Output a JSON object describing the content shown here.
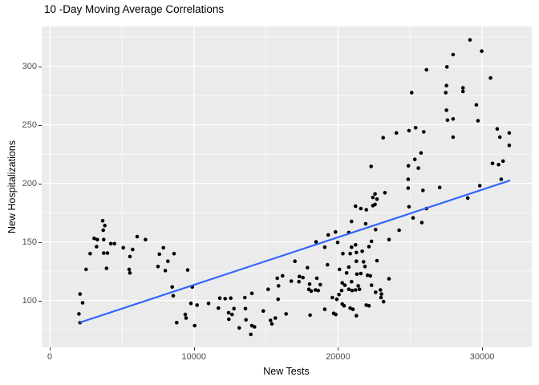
{
  "colors": {
    "panel_bg": "#EBEBEB",
    "grid_major": "#FFFFFF",
    "grid_minor": "#FFFFFF",
    "point": "#000000",
    "trend_line": "#3366FF",
    "tick_text": "#4D4D4D",
    "title_text": "#000000"
  },
  "chart_data": {
    "type": "scatter",
    "title": "10 -Day Moving Average Correlations",
    "xlabel": "New Tests",
    "ylabel": "New Hospitalizations",
    "xlim": [
      -560,
      33450
    ],
    "ylim": [
      60,
      334
    ],
    "grid": "major+minor",
    "legend_position": "none",
    "x_ticks": [
      0,
      10000,
      20000,
      30000
    ],
    "x_tick_labels": [
      "0",
      "10000",
      "20000",
      "30000"
    ],
    "x_minor_ticks": [
      5000,
      15000,
      25000
    ],
    "y_ticks": [
      100,
      150,
      200,
      250,
      300
    ],
    "y_tick_labels": [
      "100",
      "150",
      "200",
      "250",
      "300"
    ],
    "y_minor_ticks": [
      75,
      125,
      175,
      225,
      275,
      325
    ],
    "trend_line": {
      "x1": 2050,
      "y1": 81,
      "x2": 31950,
      "y2": 202.5
    },
    "points": [
      [
        2020,
        88.5
      ],
      [
        2100,
        81
      ],
      [
        2100,
        105.5
      ],
      [
        2280,
        98
      ],
      [
        2520,
        126.5
      ],
      [
        2800,
        140
      ],
      [
        3080,
        153
      ],
      [
        3245,
        146
      ],
      [
        3300,
        152
      ],
      [
        3670,
        168
      ],
      [
        3710,
        160
      ],
      [
        3745,
        152
      ],
      [
        3745,
        140.5
      ],
      [
        3820,
        164
      ],
      [
        3935,
        127.5
      ],
      [
        4005,
        140.5
      ],
      [
        4230,
        148.5
      ],
      [
        4490,
        148.5
      ],
      [
        5100,
        145
      ],
      [
        5510,
        126.5
      ],
      [
        5565,
        137.5
      ],
      [
        5565,
        123.5
      ],
      [
        5750,
        143.5
      ],
      [
        6065,
        154.5
      ],
      [
        6640,
        152
      ],
      [
        7510,
        129
      ],
      [
        7605,
        139.5
      ],
      [
        7885,
        145
      ],
      [
        8015,
        125.5
      ],
      [
        8195,
        133.5
      ],
      [
        8495,
        111.5
      ],
      [
        8570,
        104
      ],
      [
        8625,
        140
      ],
      [
        8810,
        81
      ],
      [
        9405,
        88
      ],
      [
        9460,
        85
      ],
      [
        9570,
        126
      ],
      [
        9795,
        97.5
      ],
      [
        9890,
        111.5
      ],
      [
        10055,
        78.5
      ],
      [
        10220,
        96
      ],
      [
        11020,
        97.5
      ],
      [
        11705,
        93.5
      ],
      [
        11795,
        102
      ],
      [
        12170,
        101.5
      ],
      [
        12410,
        89.5
      ],
      [
        12425,
        84
      ],
      [
        12560,
        102
      ],
      [
        12650,
        88
      ],
      [
        12780,
        93
      ],
      [
        13150,
        76.5
      ],
      [
        13540,
        102.5
      ],
      [
        13580,
        93
      ],
      [
        13615,
        83.5
      ],
      [
        13950,
        71
      ],
      [
        14025,
        106
      ],
      [
        14025,
        78.5
      ],
      [
        14205,
        77.5
      ],
      [
        14820,
        91
      ],
      [
        15155,
        109.5
      ],
      [
        15320,
        83
      ],
      [
        15415,
        80
      ],
      [
        15655,
        85
      ],
      [
        15790,
        119
      ],
      [
        15845,
        101
      ],
      [
        15875,
        112.5
      ],
      [
        16155,
        121
      ],
      [
        16400,
        88.5
      ],
      [
        16765,
        116.5
      ],
      [
        17010,
        133.5
      ],
      [
        17290,
        116
      ],
      [
        17325,
        120.5
      ],
      [
        17570,
        119.5
      ],
      [
        17880,
        128
      ],
      [
        17975,
        109.5
      ],
      [
        18030,
        114
      ],
      [
        18065,
        87.5
      ],
      [
        18140,
        108
      ],
      [
        18435,
        109
      ],
      [
        18475,
        150
      ],
      [
        18530,
        119
      ],
      [
        18625,
        108.5
      ],
      [
        18770,
        113.5
      ],
      [
        19085,
        145.5
      ],
      [
        19085,
        92.5
      ],
      [
        19270,
        130.5
      ],
      [
        19325,
        156
      ],
      [
        19605,
        102.5
      ],
      [
        19700,
        89
      ],
      [
        19830,
        158.5
      ],
      [
        19850,
        88
      ],
      [
        19920,
        101
      ],
      [
        19980,
        149.5
      ],
      [
        20070,
        105
      ],
      [
        20105,
        126.5
      ],
      [
        20255,
        108.5
      ],
      [
        20295,
        115
      ],
      [
        20295,
        97
      ],
      [
        20340,
        140
      ],
      [
        20425,
        95.5
      ],
      [
        20480,
        113
      ],
      [
        20605,
        123.5
      ],
      [
        20755,
        158
      ],
      [
        20755,
        128.5
      ],
      [
        20755,
        109.5
      ],
      [
        20850,
        140
      ],
      [
        20850,
        93.5
      ],
      [
        20940,
        167.5
      ],
      [
        20940,
        145.5
      ],
      [
        20940,
        116
      ],
      [
        20980,
        108.5
      ],
      [
        21035,
        92.5
      ],
      [
        21220,
        180.5
      ],
      [
        21220,
        147.5
      ],
      [
        21220,
        109
      ],
      [
        21275,
        141
      ],
      [
        21275,
        133.5
      ],
      [
        21275,
        87
      ],
      [
        21315,
        122.5
      ],
      [
        21405,
        112.5
      ],
      [
        21495,
        109.5
      ],
      [
        21590,
        178.5
      ],
      [
        21590,
        123
      ],
      [
        21685,
        142
      ],
      [
        21775,
        133
      ],
      [
        21870,
        129
      ],
      [
        21925,
        165.5
      ],
      [
        21965,
        177.5
      ],
      [
        21965,
        96
      ],
      [
        22055,
        121.5
      ],
      [
        22150,
        146
      ],
      [
        22150,
        95.5
      ],
      [
        22245,
        121
      ],
      [
        22300,
        214.5
      ],
      [
        22330,
        150.5
      ],
      [
        22330,
        113
      ],
      [
        22425,
        181
      ],
      [
        22425,
        188
      ],
      [
        22575,
        191
      ],
      [
        22575,
        182
      ],
      [
        22610,
        160.5
      ],
      [
        22610,
        107
      ],
      [
        22705,
        134
      ],
      [
        22705,
        186.5
      ],
      [
        22945,
        109
      ],
      [
        22985,
        102.5
      ],
      [
        23020,
        105.5
      ],
      [
        23135,
        239
      ],
      [
        23165,
        99
      ],
      [
        23260,
        192
      ],
      [
        23540,
        152
      ],
      [
        23540,
        118.5
      ],
      [
        24055,
        243
      ],
      [
        24245,
        160
      ],
      [
        24875,
        203.5
      ],
      [
        24875,
        196
      ],
      [
        24890,
        215
      ],
      [
        24930,
        245
      ],
      [
        24930,
        180
      ],
      [
        25115,
        277.5
      ],
      [
        25210,
        170.5
      ],
      [
        25335,
        220.5
      ],
      [
        25390,
        247.5
      ],
      [
        25580,
        213
      ],
      [
        25765,
        226
      ],
      [
        25820,
        166.5
      ],
      [
        25895,
        194
      ],
      [
        25950,
        244
      ],
      [
        26140,
        297
      ],
      [
        26140,
        178.5
      ],
      [
        27060,
        196.5
      ],
      [
        27475,
        277.5
      ],
      [
        27530,
        283.5
      ],
      [
        27530,
        262.5
      ],
      [
        27560,
        299.5
      ],
      [
        27600,
        254
      ],
      [
        27990,
        310
      ],
      [
        27990,
        255
      ],
      [
        27990,
        239.5
      ],
      [
        28675,
        281.5
      ],
      [
        28675,
        278.5
      ],
      [
        29010,
        187.5
      ],
      [
        29160,
        322.5
      ],
      [
        29605,
        267
      ],
      [
        29715,
        253.5
      ],
      [
        29845,
        198
      ],
      [
        29975,
        313
      ],
      [
        30590,
        290
      ],
      [
        30720,
        217
      ],
      [
        31050,
        246.5
      ],
      [
        31145,
        216
      ],
      [
        31235,
        239.5
      ],
      [
        31330,
        203.5
      ],
      [
        31460,
        219
      ],
      [
        31885,
        243
      ],
      [
        31885,
        232.5
      ]
    ]
  }
}
